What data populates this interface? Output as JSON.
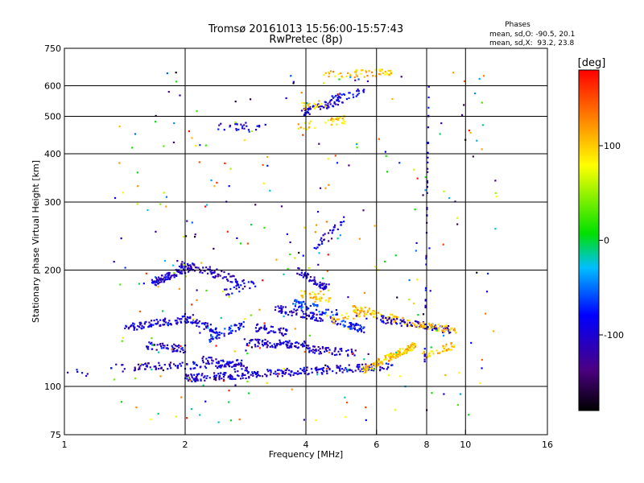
{
  "chart_data": {
    "type": "scatter",
    "title": "Tromsø 20161013 15:56:00-15:57:43",
    "subtitle": "RwPretec (8p)",
    "xlabel": "Frequency [MHz]",
    "ylabel": "Stationary phase Virtual Height [km]",
    "x_scale": "log",
    "y_scale": "log",
    "xlim": [
      1,
      16
    ],
    "ylim": [
      75,
      750
    ],
    "x_ticks": [
      1,
      2,
      4,
      6,
      8,
      10,
      16
    ],
    "x_tick_labels": [
      "1",
      "2",
      "4",
      "6",
      "8",
      "10",
      "16"
    ],
    "y_ticks": [
      75,
      100,
      200,
      300,
      400,
      500,
      600,
      750
    ],
    "y_tick_labels": [
      "75",
      "100",
      "200",
      "300",
      "400",
      "500",
      "600",
      "750"
    ],
    "x_grid": [
      2,
      4,
      6,
      8,
      10
    ],
    "y_grid": [
      100,
      200,
      300,
      400,
      500,
      600
    ],
    "stats": {
      "heading": "Phases",
      "o_line": "mean, sd,O: -90.5, 20.1",
      "x_line": "mean, sd,X:  93.2, 23.8"
    },
    "colorbar": {
      "unit": "[deg]",
      "range": [
        -180,
        180
      ],
      "ticks": [
        100,
        0,
        -100
      ],
      "tick_labels": [
        "100",
        "0",
        "-100"
      ]
    },
    "colors": {
      "gridline": "#000000",
      "background": "#ffffff"
    },
    "point_seed": 20161013,
    "traces": [
      {
        "f": [
          1.0,
          1.2
        ],
        "h": [
          110,
          108
        ],
        "phase": -100,
        "n": 6
      },
      {
        "f": [
          1.3,
          1.5
        ],
        "h": [
          112,
          111
        ],
        "phase": -100,
        "n": 10
      },
      {
        "f": [
          1.4,
          2.1
        ],
        "h": [
          142,
          150
        ],
        "phase": -100,
        "n": 90
      },
      {
        "f": [
          1.5,
          2.8
        ],
        "h": [
          112,
          115
        ],
        "phase": -100,
        "n": 90
      },
      {
        "f": [
          1.6,
          2.0
        ],
        "h": [
          128,
          125
        ],
        "phase": -100,
        "n": 50
      },
      {
        "f": [
          1.65,
          2.1
        ],
        "h": [
          185,
          205
        ],
        "phase": -100,
        "n": 90
      },
      {
        "f": [
          1.9,
          2.4
        ],
        "h": [
          210,
          195
        ],
        "phase": -110,
        "n": 50
      },
      {
        "f": [
          2.0,
          2.4
        ],
        "h": [
          150,
          140
        ],
        "phase": -100,
        "n": 45
      },
      {
        "f": [
          2.2,
          2.9
        ],
        "h": [
          118,
          110
        ],
        "phase": -100,
        "n": 55
      },
      {
        "f": [
          2.3,
          2.8
        ],
        "h": [
          200,
          185
        ],
        "phase": -100,
        "n": 40
      },
      {
        "f": [
          2.3,
          2.8
        ],
        "h": [
          133,
          145
        ],
        "phase": -80,
        "n": 50
      },
      {
        "f": [
          2.5,
          3.0
        ],
        "h": [
          175,
          185
        ],
        "phase": -100,
        "n": 25
      },
      {
        "f": [
          2.0,
          6.6
        ],
        "h": [
          105,
          113
        ],
        "phase": -100,
        "n": 260
      },
      {
        "f": [
          2.8,
          4.0
        ],
        "h": [
          130,
          128
        ],
        "phase": -100,
        "n": 90
      },
      {
        "f": [
          3.0,
          3.6
        ],
        "h": [
          142,
          138
        ],
        "phase": -100,
        "n": 45
      },
      {
        "f": [
          3.3,
          4.4
        ],
        "h": [
          160,
          150
        ],
        "phase": -100,
        "n": 70
      },
      {
        "f": [
          3.7,
          4.8
        ],
        "h": [
          165,
          155
        ],
        "phase": -70,
        "n": 50
      },
      {
        "f": [
          3.8,
          4.5
        ],
        "h": [
          200,
          180
        ],
        "phase": -100,
        "n": 60
      },
      {
        "f": [
          4.0,
          5.3
        ],
        "h": [
          125,
          122
        ],
        "phase": -100,
        "n": 60
      },
      {
        "f": [
          4.2,
          5.0
        ],
        "h": [
          230,
          270
        ],
        "phase": -100,
        "n": 30
      },
      {
        "f": [
          3.8,
          4.6
        ],
        "h": [
          175,
          168
        ],
        "phase": 100,
        "n": 35
      },
      {
        "f": [
          4.6,
          5.6
        ],
        "h": [
          150,
          140
        ],
        "phase": -80,
        "n": 50
      },
      {
        "f": [
          4.6,
          5.6
        ],
        "h": [
          148,
          155
        ],
        "phase": 100,
        "n": 30
      },
      {
        "f": [
          5.5,
          7.5
        ],
        "h": [
          110,
          128
        ],
        "phase": 100,
        "n": 140
      },
      {
        "f": [
          5.2,
          7.5
        ],
        "h": [
          160,
          145
        ],
        "phase": 100,
        "n": 80
      },
      {
        "f": [
          6.0,
          9.2
        ],
        "h": [
          150,
          140
        ],
        "phase": -100,
        "n": 80
      },
      {
        "f": [
          7.5,
          9.5
        ],
        "h": [
          145,
          140
        ],
        "phase": 100,
        "n": 50
      },
      {
        "f": [
          7.8,
          9.4
        ],
        "h": [
          120,
          128
        ],
        "phase": 100,
        "n": 40
      },
      {
        "f": [
          7.9,
          8.1
        ],
        "h": [
          110,
          600
        ],
        "phase": -100,
        "n": 45
      },
      {
        "f": [
          2.4,
          3.2
        ],
        "h": [
          470,
          472
        ],
        "phase": -100,
        "n": 25
      },
      {
        "f": [
          3.8,
          5.0
        ],
        "h": [
          470,
          490
        ],
        "phase": 100,
        "n": 35
      },
      {
        "f": [
          3.9,
          5.0
        ],
        "h": [
          510,
          555
        ],
        "phase": -100,
        "n": 60
      },
      {
        "f": [
          4.6,
          5.6
        ],
        "h": [
          555,
          580
        ],
        "phase": -80,
        "n": 30
      },
      {
        "f": [
          3.9,
          4.5
        ],
        "h": [
          530,
          540
        ],
        "phase": 100,
        "n": 20
      },
      {
        "f": [
          4.4,
          6.6
        ],
        "h": [
          640,
          650
        ],
        "phase": 100,
        "n": 55
      },
      {
        "f": [
          1.3,
          12.0
        ],
        "h": [
          80,
          650
        ],
        "phase": "random",
        "n": 320
      }
    ]
  }
}
